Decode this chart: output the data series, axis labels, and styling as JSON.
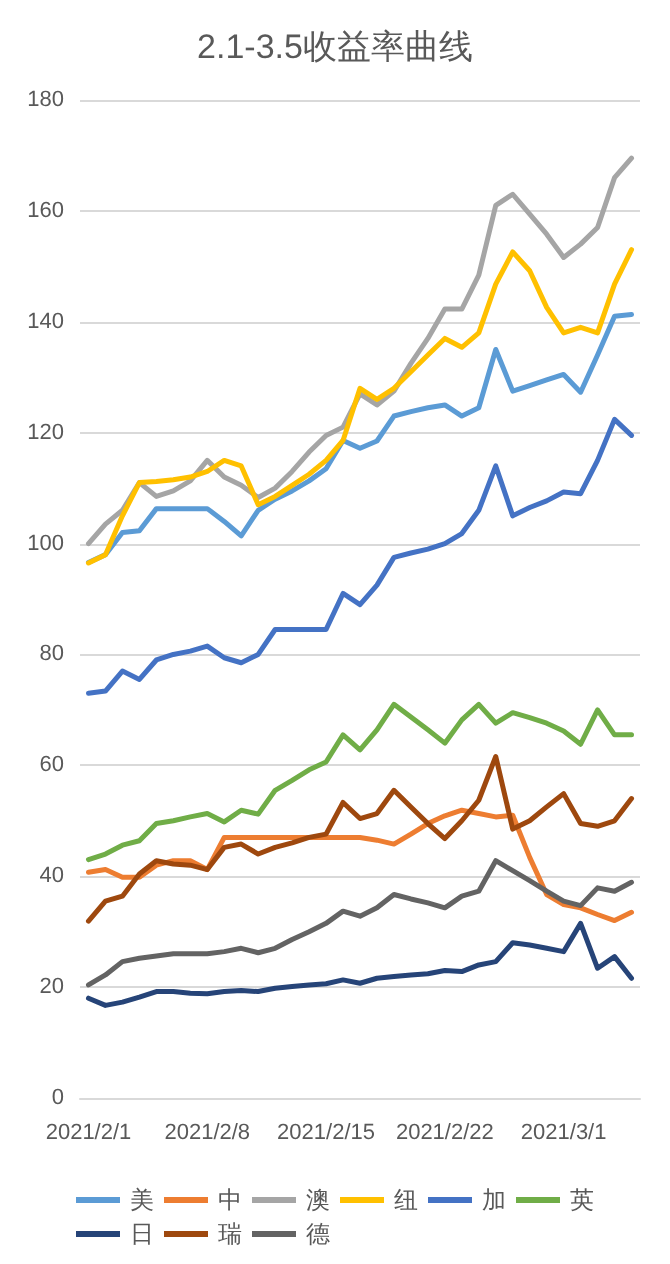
{
  "chart_data": {
    "type": "line",
    "title": "2.1-3.5收益率曲线",
    "x": [
      "2021-02-01",
      "2021-02-02",
      "2021-02-03",
      "2021-02-04",
      "2021-02-05",
      "2021-02-06",
      "2021-02-07",
      "2021-02-08",
      "2021-02-09",
      "2021-02-10",
      "2021-02-11",
      "2021-02-12",
      "2021-02-13",
      "2021-02-14",
      "2021-02-15",
      "2021-02-16",
      "2021-02-17",
      "2021-02-18",
      "2021-02-19",
      "2021-02-20",
      "2021-02-21",
      "2021-02-22",
      "2021-02-23",
      "2021-02-24",
      "2021-02-25",
      "2021-02-26",
      "2021-02-27",
      "2021-02-28",
      "2021-03-01",
      "2021-03-02",
      "2021-03-03",
      "2021-03-04",
      "2021-03-05"
    ],
    "series": [
      {
        "name": "美",
        "color": "#5b9bd5",
        "values": [
          96.6,
          98,
          102,
          102.3,
          106.3,
          106.3,
          106.3,
          106.3,
          104,
          101.4,
          106,
          108,
          109.5,
          111.3,
          113.5,
          118.6,
          117.2,
          118.5,
          123,
          123.8,
          124.5,
          125,
          123,
          124.5,
          135,
          127.5,
          128.5,
          129.5,
          130.5,
          127.3,
          134,
          141,
          141.3
        ]
      },
      {
        "name": "中",
        "color": "#ed7d31",
        "values": [
          40.7,
          41.2,
          39.8,
          39.8,
          42,
          42.8,
          42.8,
          41.2,
          47,
          47,
          47,
          47,
          47,
          47,
          47,
          47,
          47,
          46.5,
          45.8,
          47.6,
          49.5,
          50.9,
          51.9,
          51.3,
          50.7,
          51,
          43.4,
          36.7,
          34.9,
          34.3,
          33.1,
          32,
          33.5
        ]
      },
      {
        "name": "澳",
        "color": "#a5a5a5",
        "values": [
          100,
          103.5,
          106,
          111,
          108.5,
          109.5,
          111.3,
          115,
          112,
          110.5,
          108.3,
          110,
          113,
          116.5,
          119.5,
          121,
          127,
          125,
          127.5,
          132.5,
          137,
          142.3,
          142.3,
          148.4,
          161,
          163,
          159.4,
          155.8,
          151.6,
          154,
          157,
          166,
          169.5
        ]
      },
      {
        "name": "纽",
        "color": "#ffc000",
        "values": [
          96.5,
          98,
          105,
          111,
          111.2,
          111.5,
          112,
          113,
          115,
          114,
          107,
          108.5,
          110.5,
          112.5,
          115,
          118.6,
          128,
          126,
          128,
          131,
          134,
          137,
          135.4,
          138,
          146.8,
          152.6,
          149.2,
          142.6,
          138,
          139,
          138,
          146.8,
          153
        ]
      },
      {
        "name": "加",
        "color": "#4472c4",
        "values": [
          73,
          73.4,
          77,
          75.5,
          79,
          80,
          80.6,
          81.5,
          79.4,
          78.5,
          80,
          84.5,
          84.5,
          84.5,
          84.5,
          91,
          89,
          92.5,
          97.5,
          98.3,
          99,
          100,
          101.8,
          106,
          114,
          105,
          106.5,
          107.7,
          109.3,
          109,
          115,
          122.4,
          119.5
        ]
      },
      {
        "name": "英",
        "color": "#70ad47",
        "values": [
          43,
          44,
          45.6,
          46.4,
          49.5,
          50,
          50.7,
          51.3,
          49.8,
          51.9,
          51.2,
          55.5,
          57.3,
          59.2,
          60.6,
          65.5,
          62.8,
          66.4,
          71,
          68.7,
          66.4,
          64,
          68.2,
          71,
          67.6,
          69.5,
          68.6,
          67.6,
          66.2,
          63.8,
          70,
          65.5,
          65.5
        ]
      },
      {
        "name": "日",
        "color": "#264478",
        "values": [
          18,
          16.7,
          17.3,
          18.2,
          19.2,
          19.2,
          18.9,
          18.8,
          19.2,
          19.4,
          19.2,
          19.8,
          20.1,
          20.4,
          20.6,
          21.3,
          20.7,
          21.6,
          21.9,
          22.2,
          22.4,
          23,
          22.8,
          24,
          24.6,
          28,
          27.6,
          27,
          26.4,
          31.5,
          23.4,
          25.5,
          21.6
        ]
      },
      {
        "name": "瑞",
        "color": "#9e480e",
        "values": [
          31.9,
          35.5,
          36.4,
          40.4,
          42.8,
          42.2,
          42,
          41.2,
          45.2,
          45.8,
          44,
          45.2,
          46,
          47,
          47.6,
          53.3,
          50.4,
          51.3,
          55.5,
          52.5,
          49.5,
          46.8,
          50,
          53.7,
          61.6,
          48.5,
          50,
          52.5,
          54.9,
          49.5,
          49,
          50,
          54
        ]
      },
      {
        "name": "德",
        "color": "#636363",
        "values": [
          20.4,
          22.2,
          24.6,
          25.2,
          25.6,
          26,
          26,
          26,
          26.4,
          27,
          26.2,
          27,
          28.6,
          30,
          31.5,
          33.7,
          32.8,
          34.3,
          36.7,
          35.9,
          35.2,
          34.3,
          36.4,
          37.3,
          42.8,
          41,
          39.2,
          37.3,
          35.5,
          34.7,
          37.9,
          37.3,
          38.9
        ]
      }
    ],
    "xlim": [
      "2021-01-31T12:00",
      "2021-03-05T12:00"
    ],
    "xticks": [
      {
        "value": "2021-02-01",
        "label": "2021/2/1"
      },
      {
        "value": "2021-02-08",
        "label": "2021/2/8"
      },
      {
        "value": "2021-02-15",
        "label": "2021/2/15"
      },
      {
        "value": "2021-02-22",
        "label": "2021/2/22"
      },
      {
        "value": "2021-03-01",
        "label": "2021/3/1"
      }
    ],
    "ylim": [
      0,
      180
    ],
    "yticks": [
      0,
      20,
      40,
      60,
      80,
      100,
      120,
      140,
      160,
      180
    ],
    "grid": "y",
    "legend": "bottom",
    "marker": "none",
    "line_style": "solid"
  }
}
